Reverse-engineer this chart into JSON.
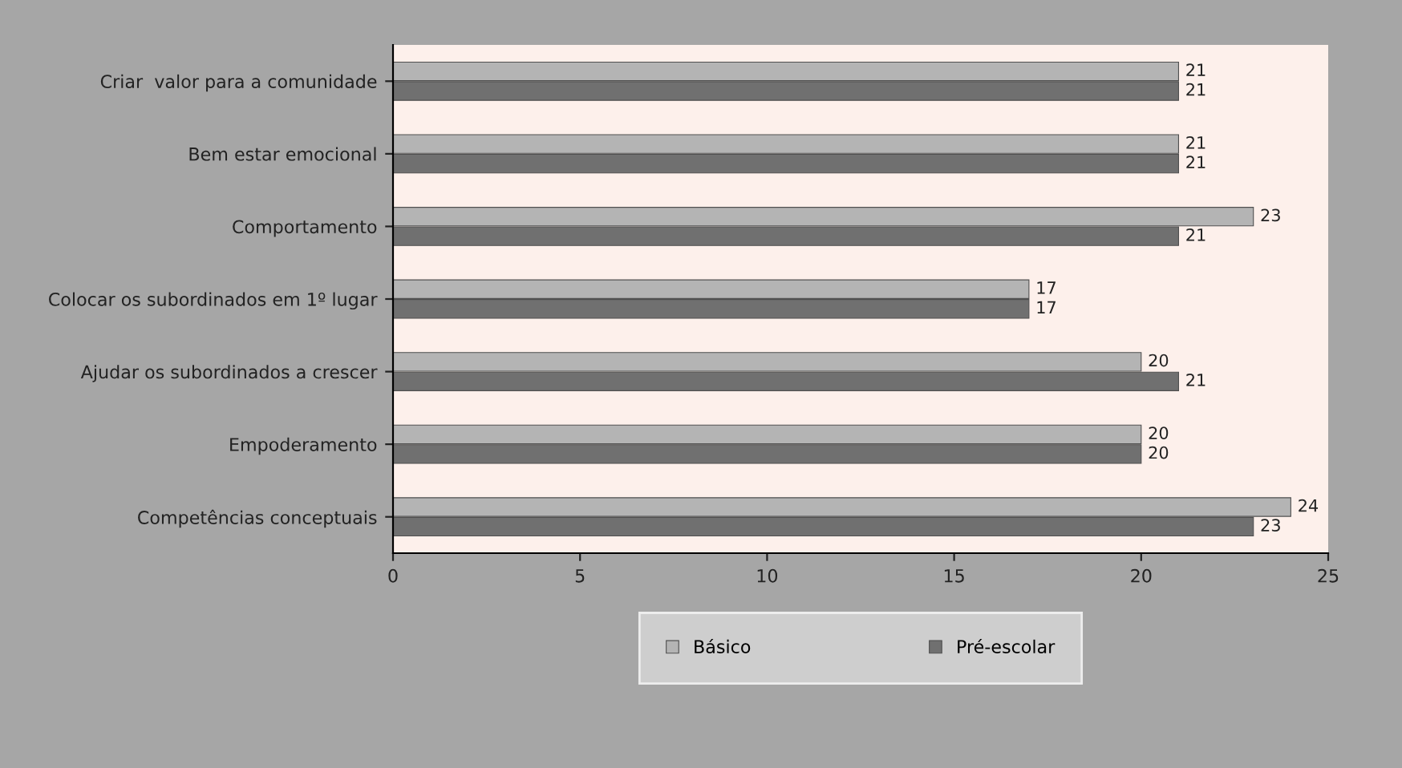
{
  "chart_data": {
    "type": "bar",
    "orientation": "horizontal",
    "categories": [
      "Criar  valor para a comunidade",
      "Bem estar emocional",
      "Comportamento",
      "Colocar os subordinados em 1º lugar",
      "Ajudar os subordinados a crescer",
      "Empoderamento",
      "Competências conceptuais"
    ],
    "series": [
      {
        "name": "Básico",
        "color": "#b4b4b4",
        "values": [
          21,
          21,
          23,
          17,
          20,
          20,
          24
        ]
      },
      {
        "name": "Pré-escolar",
        "color": "#707070",
        "values": [
          21,
          21,
          21,
          17,
          21,
          20,
          23
        ]
      }
    ],
    "xlim": [
      0,
      25
    ],
    "xticks": [
      0,
      5,
      10,
      15,
      20,
      25
    ],
    "data_labels": true,
    "grid": false,
    "legend": "bottom"
  }
}
